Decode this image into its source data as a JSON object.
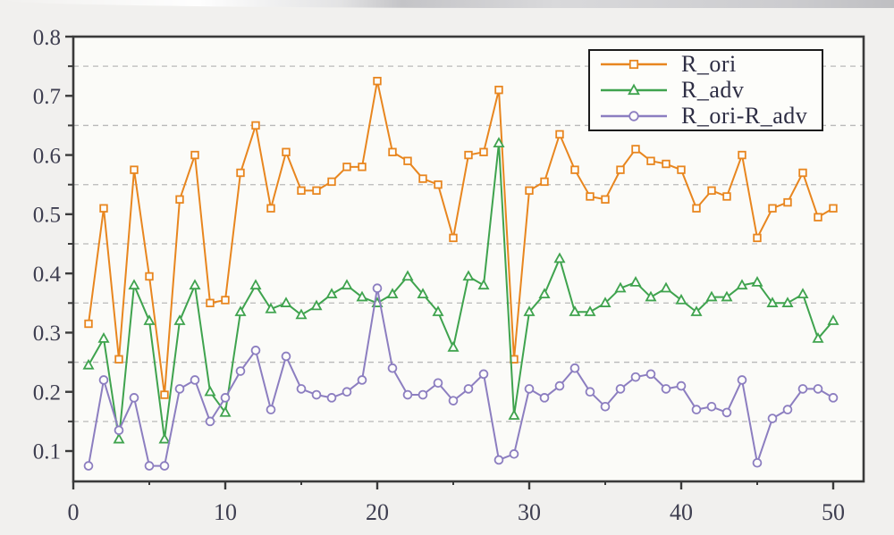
{
  "chart_data": {
    "type": "line",
    "x": [
      1,
      2,
      3,
      4,
      5,
      6,
      7,
      8,
      9,
      10,
      11,
      12,
      13,
      14,
      15,
      16,
      17,
      18,
      19,
      20,
      21,
      22,
      23,
      24,
      25,
      26,
      27,
      28,
      29,
      30,
      31,
      32,
      33,
      34,
      35,
      36,
      37,
      38,
      39,
      40,
      41,
      42,
      43,
      44,
      45,
      46,
      47,
      48,
      49,
      50
    ],
    "series": [
      {
        "name": "R_ori",
        "marker": "square",
        "color": "#E8861F",
        "values": [
          0.315,
          0.51,
          0.255,
          0.575,
          0.395,
          0.195,
          0.525,
          0.6,
          0.35,
          0.355,
          0.57,
          0.65,
          0.51,
          0.605,
          0.54,
          0.54,
          0.555,
          0.58,
          0.58,
          0.725,
          0.605,
          0.59,
          0.56,
          0.55,
          0.46,
          0.6,
          0.605,
          0.71,
          0.255,
          0.54,
          0.555,
          0.635,
          0.575,
          0.53,
          0.525,
          0.575,
          0.61,
          0.59,
          0.585,
          0.575,
          0.51,
          0.54,
          0.53,
          0.6,
          0.46,
          0.51,
          0.52,
          0.57,
          0.495,
          0.51
        ]
      },
      {
        "name": "R_adv",
        "marker": "triangle",
        "color": "#3FA34E",
        "values": [
          0.245,
          0.29,
          0.12,
          0.38,
          0.32,
          0.12,
          0.32,
          0.38,
          0.2,
          0.165,
          0.335,
          0.38,
          0.34,
          0.35,
          0.33,
          0.345,
          0.365,
          0.38,
          0.36,
          0.35,
          0.365,
          0.395,
          0.365,
          0.335,
          0.275,
          0.395,
          0.38,
          0.62,
          0.16,
          0.335,
          0.365,
          0.425,
          0.335,
          0.335,
          0.35,
          0.375,
          0.385,
          0.36,
          0.375,
          0.355,
          0.335,
          0.36,
          0.36,
          0.38,
          0.385,
          0.35,
          0.35,
          0.365,
          0.29,
          0.32
        ]
      },
      {
        "name": "R_ori-R_adv",
        "marker": "circle",
        "color": "#8C7EC0",
        "values": [
          0.075,
          0.22,
          0.135,
          0.19,
          0.075,
          0.075,
          0.205,
          0.22,
          0.15,
          0.19,
          0.235,
          0.27,
          0.17,
          0.26,
          0.205,
          0.195,
          0.19,
          0.2,
          0.22,
          0.375,
          0.24,
          0.195,
          0.195,
          0.215,
          0.185,
          0.205,
          0.23,
          0.085,
          0.095,
          0.205,
          0.19,
          0.21,
          0.24,
          0.2,
          0.175,
          0.205,
          0.225,
          0.23,
          0.205,
          0.21,
          0.17,
          0.175,
          0.165,
          0.22,
          0.08,
          0.155,
          0.17,
          0.205,
          0.205,
          0.19
        ]
      }
    ],
    "title": "",
    "xlabel": "",
    "ylabel": "",
    "xlim": [
      0,
      52
    ],
    "ylim": [
      0.05,
      0.8
    ],
    "x_ticks": [
      0,
      10,
      20,
      30,
      40,
      50
    ],
    "x_tick_labels": [
      "0",
      "10",
      "20",
      "30",
      "40",
      "50"
    ],
    "x_minor_ticks": [
      5,
      15,
      25,
      35,
      45
    ],
    "y_ticks": [
      0.1,
      0.2,
      0.3,
      0.4,
      0.5,
      0.6,
      0.7,
      0.8
    ],
    "y_tick_labels": [
      "0.1",
      "0.2",
      "0.3",
      "0.4",
      "0.5",
      "0.6",
      "0.7",
      "0.8"
    ],
    "y_gridlines": [
      0.15,
      0.25,
      0.35,
      0.45,
      0.55,
      0.65,
      0.75
    ],
    "grid": "horizontal-dashed",
    "legend_position": "top-right"
  },
  "colors": {
    "frame": "#3a3a3a",
    "grid": "#b9b9b9",
    "tick_label": "#3e3e50",
    "plot_background": "#fbfbf8",
    "page_background": "#f1f0ee",
    "marker_fill": "#fdfdfb"
  }
}
